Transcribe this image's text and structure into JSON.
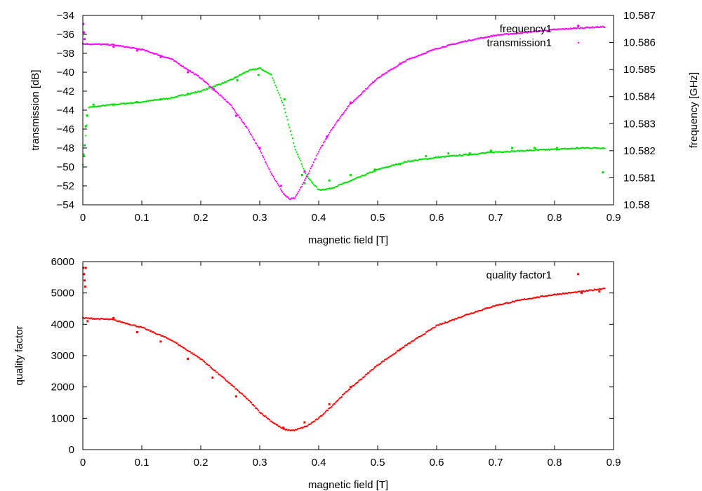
{
  "chart_data": [
    {
      "type": "scatter",
      "panel": "top",
      "xlabel": "magnetic field [T]",
      "ylabel": "transmission [dB]",
      "y2label": "frequency [GHz]",
      "xlim": [
        0,
        0.9
      ],
      "ylim": [
        -54,
        -34
      ],
      "y2lim": [
        10.58,
        10.587
      ],
      "xticks": [
        "0",
        "0.1",
        "0.2",
        "0.3",
        "0.4",
        "0.5",
        "0.6",
        "0.7",
        "0.8",
        "0.9"
      ],
      "yticks": [
        "-34",
        "-36",
        "-38",
        "-40",
        "-42",
        "-44",
        "-46",
        "-48",
        "-50",
        "-52",
        "-54"
      ],
      "y2ticks": [
        "10.587",
        "10.586",
        "10.585",
        "10.584",
        "10.583",
        "10.582",
        "10.581",
        "10.58"
      ],
      "legend_position": "top-right",
      "series": [
        {
          "name": "frequency1",
          "axis": "y2",
          "color": "#00e000",
          "points": [
            [
              0,
              10.5815
            ],
            [
              0.01,
              10.5836
            ],
            [
              0.05,
              10.5837
            ],
            [
              0.1,
              10.5838
            ],
            [
              0.15,
              10.58395
            ],
            [
              0.2,
              10.5842
            ],
            [
              0.25,
              10.5846
            ],
            [
              0.28,
              10.58495
            ],
            [
              0.3,
              10.58505
            ],
            [
              0.32,
              10.5848
            ],
            [
              0.34,
              10.5837
            ],
            [
              0.36,
              10.5821
            ],
            [
              0.38,
              10.58105
            ],
            [
              0.4,
              10.58055
            ],
            [
              0.42,
              10.5806
            ],
            [
              0.45,
              10.58085
            ],
            [
              0.5,
              10.5813
            ],
            [
              0.55,
              10.5816
            ],
            [
              0.6,
              10.58175
            ],
            [
              0.65,
              10.58185
            ],
            [
              0.7,
              10.58195
            ],
            [
              0.75,
              10.582
            ],
            [
              0.8,
              10.58205
            ],
            [
              0.85,
              10.5821
            ],
            [
              0.885,
              10.5821
            ]
          ],
          "outliers": [
            [
              0.002,
              10.5818
            ],
            [
              0.003,
              10.5822
            ],
            [
              0.005,
              10.5829
            ],
            [
              0.007,
              10.5833
            ],
            [
              0.018,
              10.5837
            ],
            [
              0.052,
              10.5837
            ],
            [
              0.092,
              10.5838
            ],
            [
              0.132,
              10.5839
            ],
            [
              0.178,
              10.5841
            ],
            [
              0.22,
              10.5843
            ],
            [
              0.262,
              10.5846
            ],
            [
              0.298,
              10.5848
            ],
            [
              0.342,
              10.5839
            ],
            [
              0.372,
              10.5811
            ],
            [
              0.376,
              10.5808
            ],
            [
              0.418,
              10.5809
            ],
            [
              0.454,
              10.5811
            ],
            [
              0.495,
              10.5813
            ],
            [
              0.538,
              10.5815
            ],
            [
              0.582,
              10.5818
            ],
            [
              0.62,
              10.5819
            ],
            [
              0.656,
              10.5819
            ],
            [
              0.692,
              10.582
            ],
            [
              0.728,
              10.5821
            ],
            [
              0.766,
              10.5821
            ],
            [
              0.804,
              10.5821
            ],
            [
              0.838,
              10.5821
            ],
            [
              0.882,
              10.5812
            ]
          ]
        },
        {
          "name": "transmission1",
          "axis": "y",
          "color": "#ff00ff",
          "points": [
            [
              0,
              -37.0
            ],
            [
              0.05,
              -37.1
            ],
            [
              0.1,
              -37.6
            ],
            [
              0.15,
              -38.6
            ],
            [
              0.2,
              -40.6
            ],
            [
              0.25,
              -43.4
            ],
            [
              0.28,
              -46.0
            ],
            [
              0.3,
              -48.2
            ],
            [
              0.32,
              -50.7
            ],
            [
              0.34,
              -52.8
            ],
            [
              0.35,
              -53.4
            ],
            [
              0.36,
              -53.3
            ],
            [
              0.38,
              -51.0
            ],
            [
              0.4,
              -48.4
            ],
            [
              0.42,
              -46.2
            ],
            [
              0.45,
              -43.6
            ],
            [
              0.5,
              -40.6
            ],
            [
              0.55,
              -38.7
            ],
            [
              0.6,
              -37.5
            ],
            [
              0.65,
              -36.7
            ],
            [
              0.7,
              -36.1
            ],
            [
              0.75,
              -35.8
            ],
            [
              0.8,
              -35.5
            ],
            [
              0.85,
              -35.3
            ],
            [
              0.885,
              -35.2
            ]
          ],
          "outliers": [
            [
              0.001,
              -34.9
            ],
            [
              0.002,
              -35.8
            ],
            [
              0.003,
              -36.5
            ],
            [
              0.052,
              -37.3
            ],
            [
              0.092,
              -37.7
            ],
            [
              0.132,
              -38.4
            ],
            [
              0.178,
              -40.0
            ],
            [
              0.222,
              -41.8
            ],
            [
              0.26,
              -44.6
            ],
            [
              0.3,
              -48.0
            ],
            [
              0.336,
              -52.0
            ],
            [
              0.376,
              -50.5
            ],
            [
              0.414,
              -46.8
            ],
            [
              0.454,
              -43.2
            ],
            [
              0.538,
              -39.1
            ],
            [
              0.84,
              -35.1
            ]
          ]
        }
      ]
    },
    {
      "type": "scatter",
      "panel": "bottom",
      "xlabel": "magnetic field [T]",
      "ylabel": "quality factor",
      "xlim": [
        0,
        0.9
      ],
      "ylim": [
        0,
        6000
      ],
      "xticks": [
        "0",
        "0.1",
        "0.2",
        "0.3",
        "0.4",
        "0.5",
        "0.6",
        "0.7",
        "0.8",
        "0.9"
      ],
      "yticks": [
        "6000",
        "5000",
        "4000",
        "3000",
        "2000",
        "1000",
        "0"
      ],
      "legend_position": "top-right",
      "series": [
        {
          "name": "quality factor1",
          "color": "#ff0000",
          "points": [
            [
              0,
              4200
            ],
            [
              0.05,
              4150
            ],
            [
              0.1,
              3900
            ],
            [
              0.15,
              3500
            ],
            [
              0.2,
              2900
            ],
            [
              0.25,
              2100
            ],
            [
              0.28,
              1600
            ],
            [
              0.3,
              1200
            ],
            [
              0.32,
              900
            ],
            [
              0.34,
              650
            ],
            [
              0.35,
              620
            ],
            [
              0.36,
              620
            ],
            [
              0.38,
              750
            ],
            [
              0.4,
              1000
            ],
            [
              0.42,
              1350
            ],
            [
              0.45,
              1900
            ],
            [
              0.5,
              2700
            ],
            [
              0.55,
              3350
            ],
            [
              0.6,
              3950
            ],
            [
              0.65,
              4300
            ],
            [
              0.7,
              4600
            ],
            [
              0.75,
              4800
            ],
            [
              0.8,
              4950
            ],
            [
              0.85,
              5050
            ],
            [
              0.885,
              5150
            ]
          ],
          "outliers": [
            [
              0.001,
              5800
            ],
            [
              0.002,
              5600
            ],
            [
              0.003,
              5400
            ],
            [
              0.004,
              5200
            ],
            [
              0.005,
              5800
            ],
            [
              0.008,
              4100
            ],
            [
              0.052,
              4200
            ],
            [
              0.092,
              3750
            ],
            [
              0.132,
              3450
            ],
            [
              0.178,
              2900
            ],
            [
              0.22,
              2300
            ],
            [
              0.26,
              1700
            ],
            [
              0.34,
              700
            ],
            [
              0.376,
              870
            ],
            [
              0.418,
              1450
            ],
            [
              0.454,
              2000
            ],
            [
              0.538,
              3200
            ],
            [
              0.84,
              5600
            ],
            [
              0.846,
              5000
            ],
            [
              0.876,
              5050
            ]
          ]
        }
      ]
    }
  ]
}
